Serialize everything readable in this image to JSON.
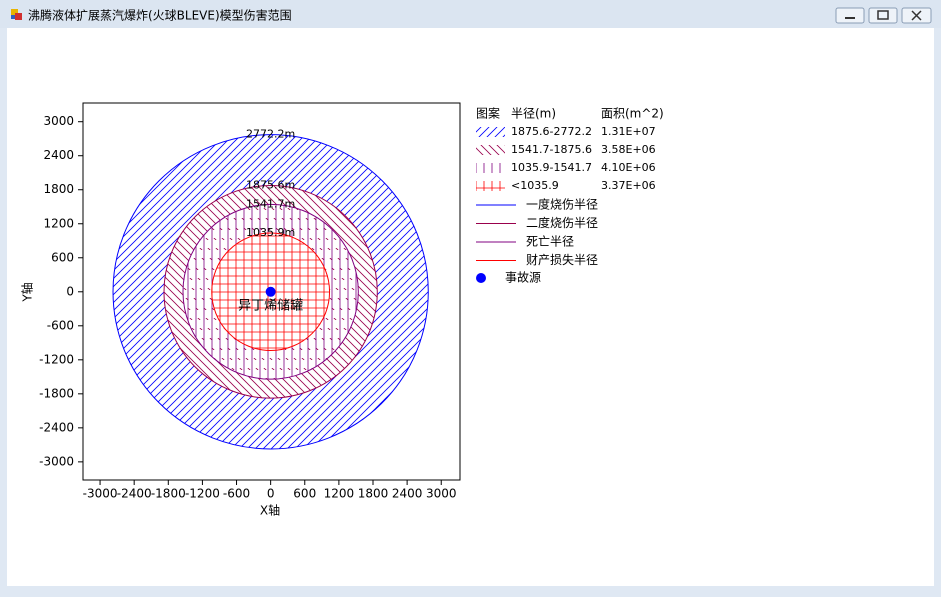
{
  "window": {
    "title": "沸腾液体扩展蒸汽爆炸(火球BLEVE)模型伤害范围"
  },
  "chart_data": {
    "type": "rings",
    "xlabel": "X轴",
    "ylabel": "Y轴",
    "xlim": [
      -3300,
      3330
    ],
    "ylim": [
      -3320,
      3330
    ],
    "xticks": [
      -3000,
      -2400,
      -1800,
      -1200,
      -600,
      0,
      600,
      1200,
      1800,
      2400,
      3000
    ],
    "yticks": [
      -3000,
      -2400,
      -1800,
      -1200,
      -600,
      0,
      600,
      1200,
      1800,
      2400,
      3000
    ],
    "series": [
      {
        "name": "一度烧伤半径",
        "color": "#0000ff",
        "pattern": "diagonal"
      },
      {
        "name": "二度烧伤半径",
        "color": "#99004c",
        "pattern": "back-diagonal"
      },
      {
        "name": "死亡半径",
        "color": "#800080",
        "pattern": "vertical"
      },
      {
        "name": "财产损失半径",
        "color": "#ff0000",
        "pattern": "grid"
      }
    ],
    "values": [
      2772.2,
      1875.6,
      1541.7,
      1035.9
    ],
    "value_labels": [
      "2772.2m",
      "1875.6m",
      "1541.7m",
      "1035.9m"
    ],
    "legend_header": [
      "图案",
      "半径(m)",
      "面积(m^2)"
    ],
    "bands": [
      {
        "range": "1875.6-2772.2",
        "area": "1.31E+07"
      },
      {
        "range": "1541.7-1875.6",
        "area": "3.58E+06"
      },
      {
        "range": "1035.9-1541.7",
        "area": "4.10E+06"
      },
      {
        "range": "<1035.9",
        "area": "3.37E+06"
      }
    ],
    "source": {
      "name": "事故源",
      "label": "异丁烯储罐",
      "x": 0,
      "y": 0,
      "color": "#0000ff"
    }
  }
}
